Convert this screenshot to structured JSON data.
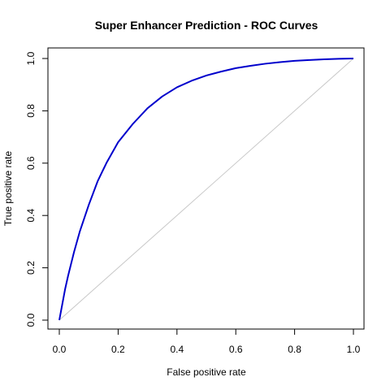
{
  "chart_data": {
    "type": "line",
    "title": "Super Enhancer Prediction - ROC Curves",
    "xlabel": "False positive rate",
    "ylabel": "True positive rate",
    "xlim": [
      0,
      1
    ],
    "ylim": [
      0,
      1
    ],
    "x_ticks": [
      "0.0",
      "0.2",
      "0.4",
      "0.6",
      "0.8",
      "1.0"
    ],
    "y_ticks": [
      "0.0",
      "0.2",
      "0.4",
      "0.6",
      "0.8",
      "1.0"
    ],
    "grid": false,
    "legend": "none",
    "series": [
      {
        "color": "#0000cc",
        "x": [
          0,
          0.01,
          0.02,
          0.03,
          0.05,
          0.07,
          0.1,
          0.13,
          0.16,
          0.2,
          0.25,
          0.3,
          0.35,
          0.4,
          0.45,
          0.5,
          0.55,
          0.6,
          0.65,
          0.7,
          0.75,
          0.8,
          0.85,
          0.9,
          0.95,
          1.0
        ],
        "y": [
          0,
          0.06,
          0.12,
          0.17,
          0.26,
          0.34,
          0.44,
          0.53,
          0.6,
          0.68,
          0.75,
          0.81,
          0.855,
          0.89,
          0.915,
          0.935,
          0.95,
          0.963,
          0.972,
          0.98,
          0.986,
          0.991,
          0.994,
          0.997,
          0.999,
          1.0
        ]
      },
      {
        "color": "#c8c8c8",
        "x": [
          0,
          1
        ],
        "y": [
          0,
          1
        ]
      }
    ]
  }
}
